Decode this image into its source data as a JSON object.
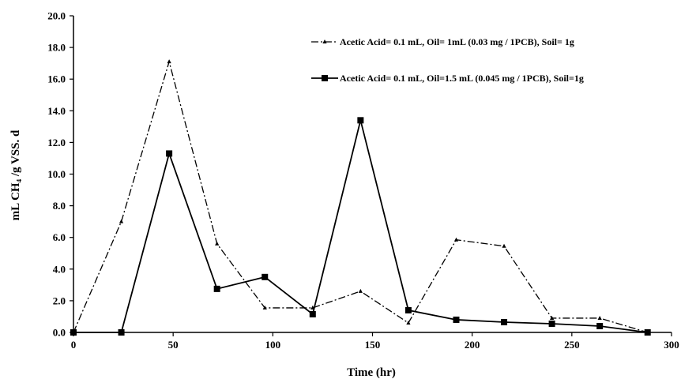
{
  "chart_data": {
    "type": "line",
    "xlabel": "Time (hr)",
    "ylabel": "mL CH₄ /g VSS. d",
    "xlim": [
      0,
      300
    ],
    "ylim": [
      0,
      20
    ],
    "x_ticks": [
      0,
      50,
      100,
      150,
      200,
      250,
      300
    ],
    "y_ticks": [
      0,
      2,
      4,
      6,
      8,
      10,
      12,
      14,
      16,
      18,
      20
    ],
    "x_tick_labels": [
      "0",
      "50",
      "100",
      "150",
      "200",
      "250",
      "300"
    ],
    "y_tick_labels": [
      "0.0",
      "2.0",
      "4.0",
      "6.0",
      "8.0",
      "10.0",
      "12.0",
      "14.0",
      "16.0",
      "18.0",
      "20.0"
    ],
    "grid": false,
    "legend_position": "top-right",
    "series": [
      {
        "name": "Acetic Acid= 0.1 mL, Oil= 1mL (0.03 mg / 1PCB), Soil= 1g",
        "color": "#000000",
        "line_style": "dash-dot",
        "marker": "triangle",
        "x": [
          0,
          24,
          48,
          72,
          96,
          120,
          144,
          168,
          192,
          216,
          240,
          264,
          288
        ],
        "y": [
          0.0,
          7.0,
          17.1,
          5.6,
          1.55,
          1.55,
          2.6,
          0.6,
          5.85,
          5.45,
          0.9,
          0.9,
          0.0
        ]
      },
      {
        "name": "Acetic Acid= 0.1 mL, Oil=1.5 mL (0.045 mg / 1PCB), Soil=1g",
        "color": "#000000",
        "line_style": "solid",
        "marker": "square",
        "x": [
          0,
          24,
          48,
          72,
          96,
          120,
          144,
          168,
          192,
          216,
          240,
          264,
          288
        ],
        "y": [
          0.0,
          0.0,
          11.3,
          2.75,
          3.5,
          1.15,
          13.4,
          1.4,
          0.8,
          0.65,
          0.55,
          0.4,
          0.0
        ]
      }
    ]
  }
}
